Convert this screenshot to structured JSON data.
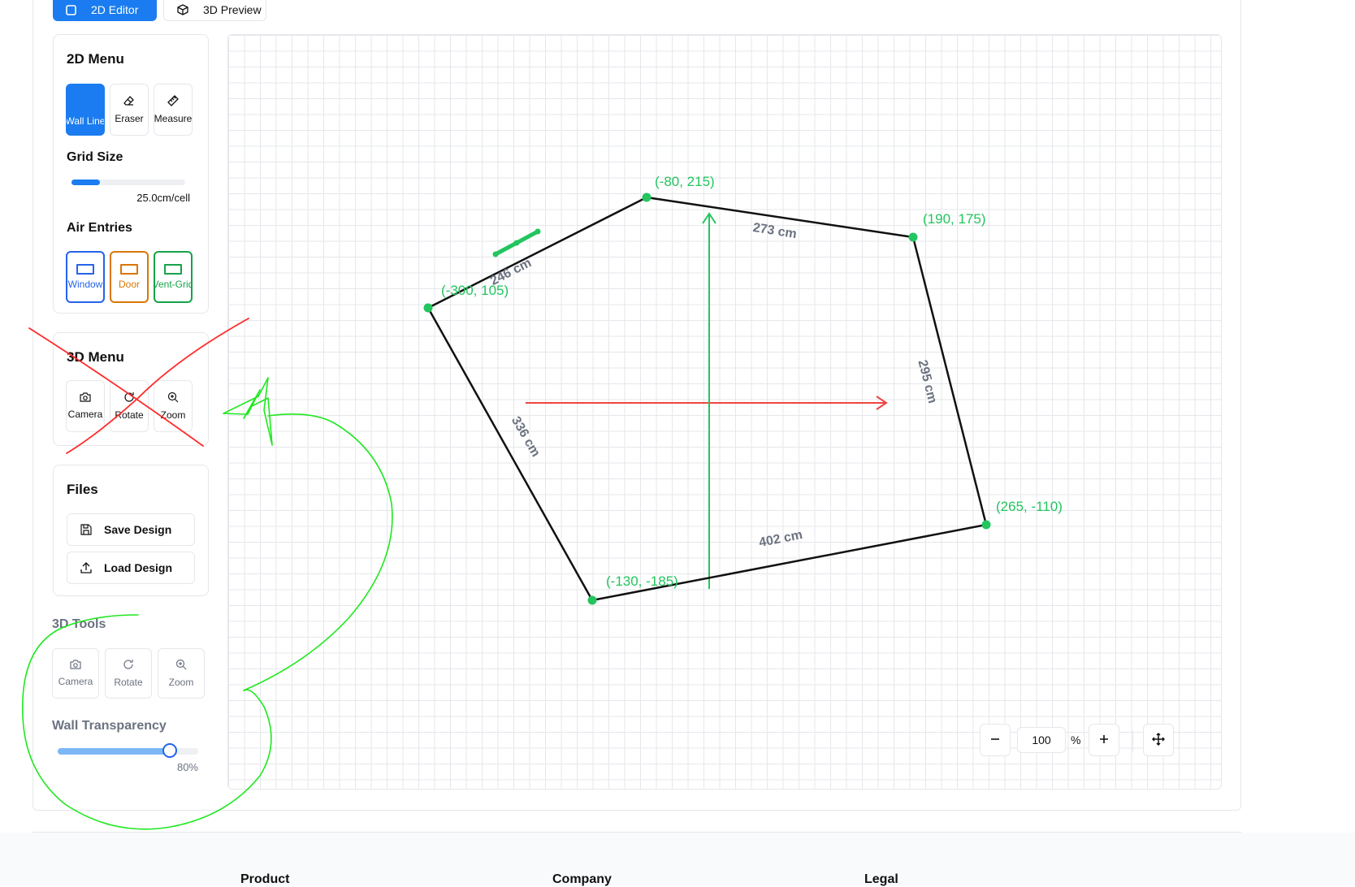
{
  "tabs": {
    "editor_2d": "2D Editor",
    "preview_3d": "3D Preview"
  },
  "menu_2d": {
    "title": "2D Menu",
    "tools": [
      {
        "label": "Wall Line",
        "icon": "wall-line-icon",
        "active": true
      },
      {
        "label": "Eraser",
        "icon": "eraser-icon",
        "active": false
      },
      {
        "label": "Measure",
        "icon": "ruler-icon",
        "active": false
      }
    ],
    "grid_size": {
      "title": "Grid Size",
      "value_label": "25.0cm/cell",
      "fraction": 0.25
    },
    "air_entries": {
      "title": "Air Entries",
      "items": [
        {
          "label": "Window",
          "color": "#2563eb"
        },
        {
          "label": "Door",
          "color": "#d97706"
        },
        {
          "label": "Vent-Grid",
          "color": "#16a34a"
        }
      ]
    }
  },
  "menu_3d": {
    "title": "3D Menu",
    "tools": [
      {
        "label": "Camera",
        "icon": "camera-icon"
      },
      {
        "label": "Rotate",
        "icon": "rotate-icon"
      },
      {
        "label": "Zoom",
        "icon": "zoom-in-icon"
      }
    ]
  },
  "files": {
    "title": "Files",
    "save_label": "Save Design",
    "load_label": "Load Design"
  },
  "tools_3d": {
    "title": "3D Tools",
    "tools": [
      {
        "label": "Camera",
        "icon": "camera-icon"
      },
      {
        "label": "Rotate",
        "icon": "rotate-icon"
      },
      {
        "label": "Zoom",
        "icon": "zoom-in-icon"
      }
    ]
  },
  "wall_transparency": {
    "title": "Wall Transparency",
    "value_label": "80%",
    "fraction": 0.8
  },
  "floor_plan": {
    "vertices": [
      {
        "label": "(-80, 215)"
      },
      {
        "label": "(190, 175)"
      },
      {
        "label": "(265, -110)"
      },
      {
        "label": "(-130, -185)"
      },
      {
        "label": "(-300, 105)"
      }
    ],
    "wall_lengths": [
      "273 cm",
      "295 cm",
      "402 cm",
      "336 cm",
      "246 cm"
    ],
    "accent_green": "#22c55e",
    "axis_x_color": "#ef4444",
    "axis_y_color": "#22c55e"
  },
  "zoom": {
    "value": "100",
    "unit": "%"
  },
  "footer": {
    "columns": [
      "Product",
      "Company",
      "Legal"
    ]
  }
}
